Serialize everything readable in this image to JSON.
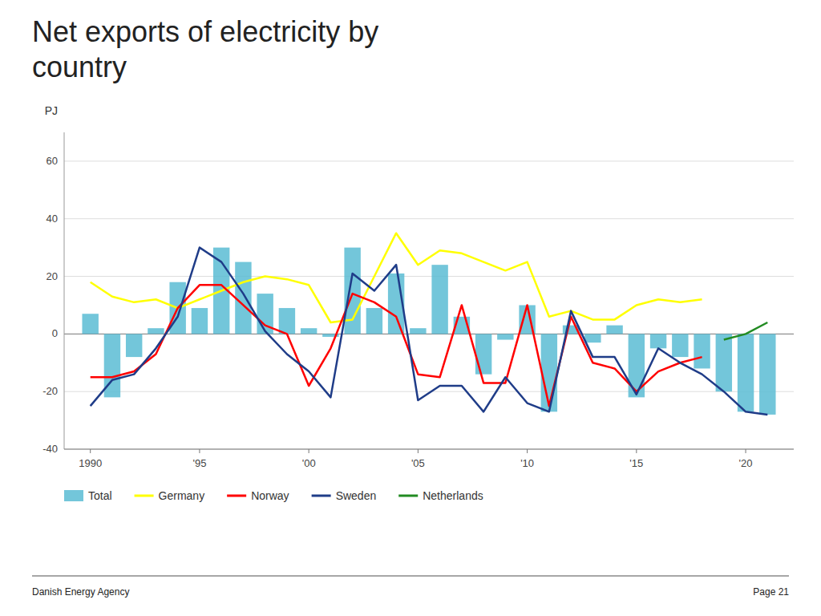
{
  "chart_data": {
    "type": "bar",
    "title": "Net exports of electricity by\ncountry",
    "ylabel": "PJ",
    "x": [
      1990,
      1991,
      1992,
      1993,
      1994,
      1995,
      1996,
      1997,
      1998,
      1999,
      2000,
      2001,
      2002,
      2003,
      2004,
      2005,
      2006,
      2007,
      2008,
      2009,
      2010,
      2011,
      2012,
      2013,
      2014,
      2015,
      2016,
      2017,
      2018,
      2019,
      2020,
      2021
    ],
    "series": [
      {
        "name": "Total",
        "type": "bar",
        "color": "#5bbcd4",
        "values": [
          7,
          -22,
          -8,
          2,
          18,
          9,
          30,
          25,
          14,
          9,
          2,
          -1,
          30,
          9,
          21,
          2,
          24,
          6,
          -14,
          -2,
          10,
          -27,
          3,
          -3,
          3,
          -22,
          -5,
          -8,
          -12,
          -20,
          -27,
          -28
        ]
      },
      {
        "name": "Germany",
        "type": "line",
        "color": "#ffff00",
        "values": [
          18,
          13,
          11,
          12,
          9,
          12,
          15,
          18,
          20,
          19,
          17,
          4,
          5,
          20,
          35,
          24,
          29,
          28,
          25,
          22,
          25,
          6,
          8,
          5,
          5,
          10,
          12,
          11,
          12,
          null,
          null,
          null
        ]
      },
      {
        "name": "Norway",
        "type": "line",
        "color": "#ff0000",
        "values": [
          -15,
          -15,
          -13,
          -7,
          9,
          17,
          17,
          10,
          3,
          0,
          -18,
          -5,
          14,
          11,
          6,
          -14,
          -15,
          10,
          -17,
          -17,
          10,
          -25,
          6,
          -10,
          -12,
          -20,
          -13,
          -10,
          -8,
          null,
          null,
          null
        ]
      },
      {
        "name": "Sweden",
        "type": "line",
        "color": "#1f3c88",
        "values": [
          -25,
          -16,
          -14,
          -5,
          6,
          30,
          25,
          14,
          1,
          -7,
          -13,
          -22,
          21,
          15,
          24,
          -23,
          -18,
          -18,
          -27,
          -15,
          -24,
          -27,
          8,
          -8,
          -8,
          -21,
          -5,
          -10,
          -14,
          -20,
          -27,
          -28
        ]
      },
      {
        "name": "Netherlands",
        "type": "line",
        "color": "#228B22",
        "values": [
          null,
          null,
          null,
          null,
          null,
          null,
          null,
          null,
          null,
          null,
          null,
          null,
          null,
          null,
          null,
          null,
          null,
          null,
          null,
          null,
          null,
          null,
          null,
          null,
          null,
          null,
          null,
          null,
          null,
          -2,
          0,
          4
        ]
      }
    ],
    "xlim": [
      1988.8,
      2022.2
    ],
    "xticks": [
      1990,
      {
        "value": 1995,
        "label": "'95"
      },
      {
        "value": 2000,
        "label": "'00"
      },
      {
        "value": 2005,
        "label": "'05"
      },
      {
        "value": 2010,
        "label": "'10"
      },
      {
        "value": 2015,
        "label": "'15"
      },
      {
        "value": 2020,
        "label": "'20"
      }
    ],
    "ylim": [
      -40,
      70
    ],
    "yticks": [
      -40,
      -20,
      0,
      20,
      40,
      60
    ],
    "grid": true,
    "legend": "bottom",
    "annotations": [
      "Danish Energy Agency",
      "Page 21"
    ]
  }
}
